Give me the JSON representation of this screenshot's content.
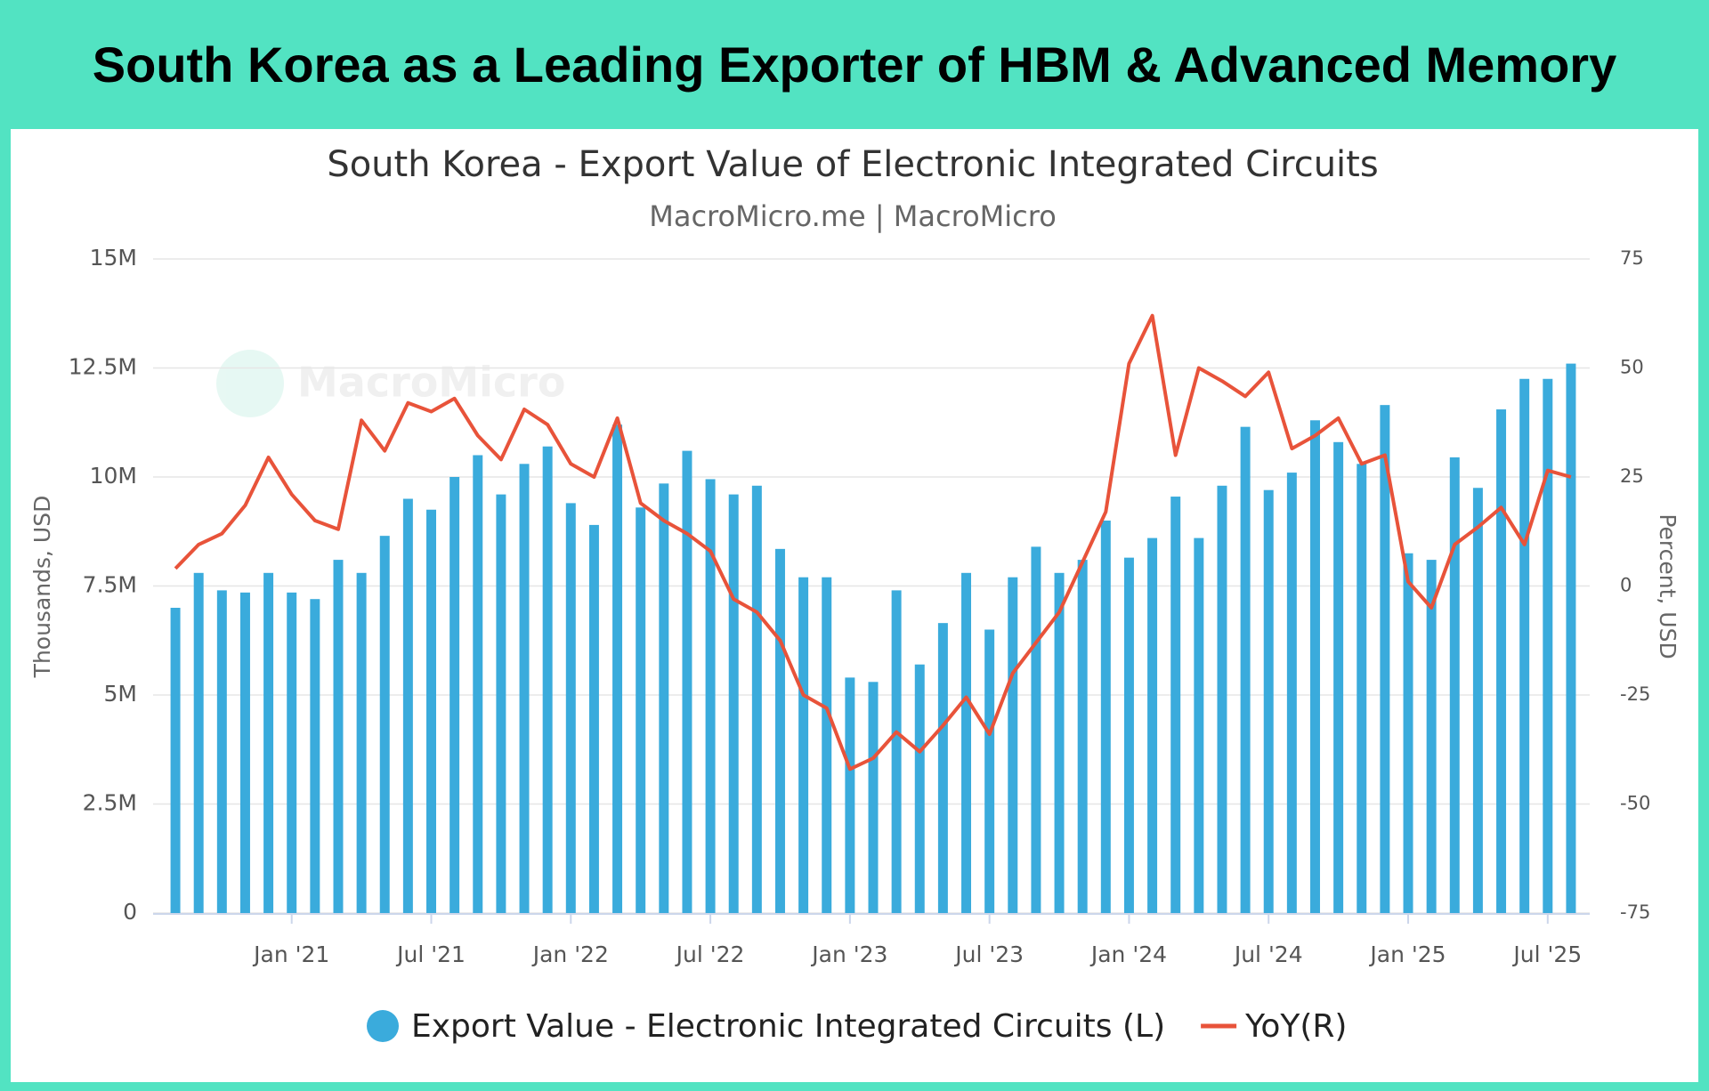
{
  "header": {
    "title": "South Korea as a Leading Exporter of HBM & Advanced Memory"
  },
  "chart_data": {
    "type": "bar",
    "title": "South Korea - Export Value of Electronic Integrated Circuits",
    "subtitle": "MacroMicro.me | MacroMicro",
    "watermark": "MacroMicro",
    "y_label": "Thousands, USD",
    "y2_label": "Percent, USD",
    "categories": [
      null,
      null,
      null,
      null,
      null,
      "Jan '21",
      null,
      null,
      null,
      null,
      null,
      "Jul '21",
      null,
      null,
      null,
      null,
      null,
      "Jan '22",
      null,
      null,
      null,
      null,
      null,
      "Jul '22",
      null,
      null,
      null,
      null,
      null,
      "Jan '23",
      null,
      null,
      null,
      null,
      null,
      "Jul '23",
      null,
      null,
      null,
      null,
      null,
      "Jan '24",
      null,
      null,
      null,
      null,
      null,
      "Jul '24",
      null,
      null,
      null,
      null,
      null,
      "Jan '25",
      null,
      null,
      null,
      null,
      null,
      "Jul '25",
      null
    ],
    "ylim": [
      0,
      15
    ],
    "yticks": [
      0,
      {
        "value": 2.5,
        "label": "2.5M"
      },
      {
        "value": 5,
        "label": "5M"
      },
      {
        "value": 7.5,
        "label": "7.5M"
      },
      {
        "value": 10,
        "label": "10M"
      },
      {
        "value": 12.5,
        "label": "12.5M"
      },
      {
        "value": 15,
        "label": "15M"
      }
    ],
    "y2lim": [
      -75,
      75
    ],
    "y2ticks": [
      -75,
      -50,
      -25,
      0,
      25,
      50,
      75
    ],
    "grid": true,
    "legend": "bottom",
    "series": [
      {
        "name": "Export Value - Electronic Integrated Circuits (L)",
        "type": "bar",
        "color": "#3aabdc",
        "values": [
          7.0,
          7.8,
          7.4,
          7.35,
          7.8,
          7.35,
          7.2,
          8.1,
          7.8,
          8.65,
          9.5,
          9.25,
          10.0,
          10.5,
          9.6,
          10.3,
          10.7,
          9.4,
          8.9,
          11.2,
          9.3,
          9.85,
          10.6,
          9.95,
          9.6,
          9.8,
          8.35,
          7.7,
          7.7,
          5.4,
          5.3,
          7.4,
          5.7,
          6.65,
          7.8,
          6.5,
          7.7,
          8.4,
          7.8,
          8.1,
          9.0,
          8.15,
          8.6,
          9.55,
          8.6,
          9.8,
          11.15,
          9.7,
          10.1,
          11.3,
          10.8,
          10.3,
          11.65,
          8.25,
          8.1,
          10.45,
          9.75,
          11.55,
          12.25,
          12.25,
          12.6
        ]
      },
      {
        "name": "YoY(R)",
        "type": "line",
        "axis": "y2",
        "color": "#e8533a",
        "values": [
          4,
          9.5,
          12,
          18.5,
          29.5,
          21,
          15,
          13,
          38,
          31,
          42,
          40,
          43,
          34.5,
          29,
          40.5,
          37,
          28,
          25,
          38.5,
          19,
          15,
          12,
          8,
          -3,
          -6,
          -12.5,
          -25,
          -28,
          -42,
          -39.5,
          -33.5,
          -38,
          -32,
          -25.5,
          -34,
          -20,
          -13,
          -6,
          5.5,
          17,
          51,
          62,
          30,
          50,
          47,
          43.5,
          49,
          31.5,
          34.5,
          38.5,
          28,
          30,
          1,
          -5,
          9.5,
          13.5,
          18,
          9.5,
          26.5,
          25
        ]
      }
    ]
  }
}
